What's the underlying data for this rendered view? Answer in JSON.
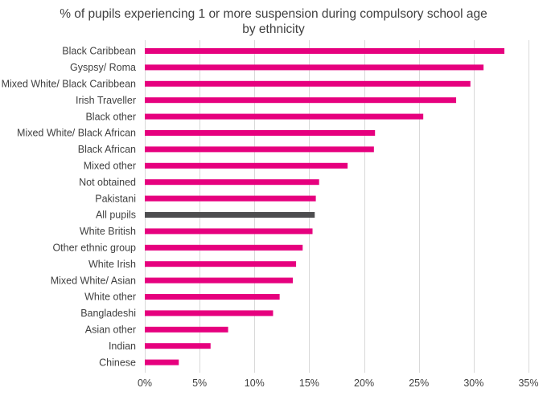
{
  "chart_data": {
    "type": "bar",
    "orientation": "horizontal",
    "title_line1": "% of pupils experiencing 1 or more suspension during compulsory school age",
    "title_line2": "by ethnicity",
    "categories": [
      "Black Caribbean",
      "Gyspsy/ Roma",
      "Mixed White/ Black Caribbean",
      "Irish Traveller",
      "Black other",
      "Mixed White/ Black African",
      "Black African",
      "Mixed other",
      "Not obtained",
      "Pakistani",
      "All pupils",
      "White British",
      "Other ethnic group",
      "White Irish",
      "Mixed White/ Asian",
      "White other",
      "Bangladeshi",
      "Asian other",
      "Indian",
      "Chinese"
    ],
    "values": [
      32.8,
      30.9,
      29.7,
      28.4,
      25.4,
      21.0,
      20.9,
      18.5,
      15.9,
      15.6,
      15.5,
      15.3,
      14.4,
      13.8,
      13.5,
      12.3,
      11.7,
      7.6,
      6.0,
      3.1
    ],
    "highlight_category": "All pupils",
    "xlim": [
      0,
      35
    ],
    "xticks": [
      0,
      5,
      10,
      15,
      20,
      25,
      30,
      35
    ],
    "xtick_labels": [
      "0%",
      "5%",
      "10%",
      "15%",
      "20%",
      "25%",
      "30%",
      "35%"
    ],
    "grid": "vertical",
    "colors": {
      "bar": "#e6007e",
      "highlight": "#4d4d4f",
      "grid": "#d9d9d9",
      "text": "#404040"
    }
  }
}
